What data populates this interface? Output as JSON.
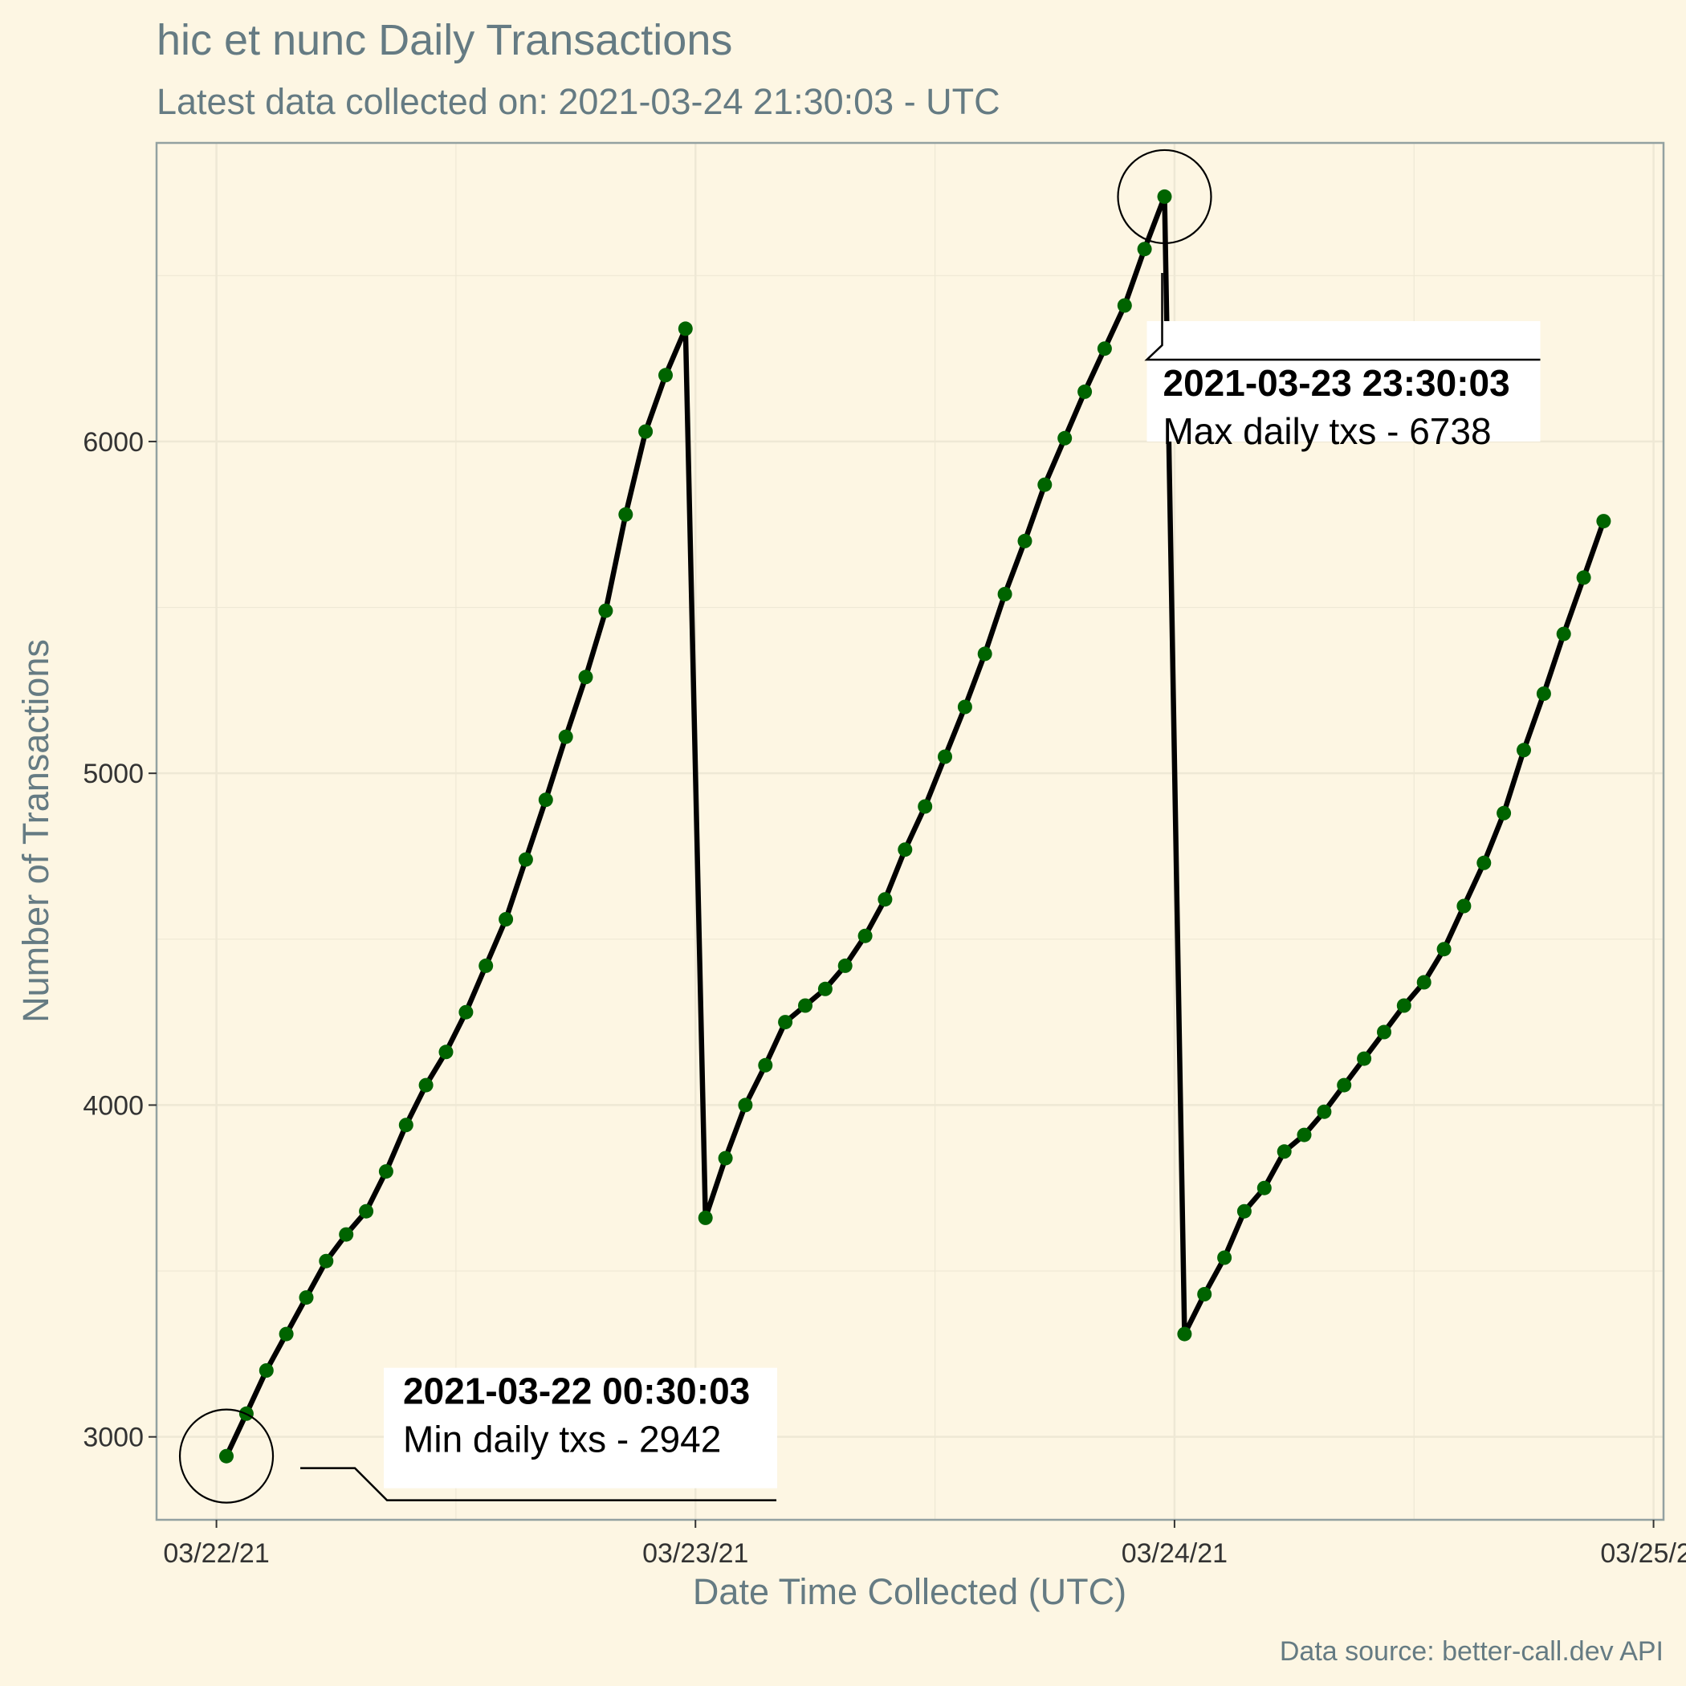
{
  "chart_data": {
    "type": "line",
    "title": "hic et nunc Daily Transactions",
    "subtitle": "Latest data collected on: 2021-03-24 21:30:03  - UTC",
    "xlabel": "Date Time Collected (UTC)",
    "ylabel": "Number of Transactions",
    "caption": "Data source: better-call.dev API",
    "x_start": "2021-03-22 00:30:03",
    "x_step_hours": 1,
    "xlim": [
      "2021-03-21 21:00",
      "2021-03-25 00:30"
    ],
    "ylim": [
      2750,
      6900
    ],
    "x_ticks": [
      "03/22/21",
      "03/23/21",
      "03/24/21",
      "03/25/21"
    ],
    "y_ticks": [
      3000,
      4000,
      5000,
      6000
    ],
    "grid": true,
    "line_color": "#000000",
    "point_color": "#006400",
    "series": [
      {
        "values": [
          2942,
          3070,
          3200,
          3310,
          3420,
          3530,
          3610,
          3680,
          3800,
          3940,
          4060,
          4160,
          4280,
          4420,
          4560,
          4740,
          4920,
          5110,
          5290,
          5490,
          5780,
          6030,
          6200,
          6340,
          3660,
          3840,
          4000,
          4120,
          4250,
          4300,
          4350,
          4420,
          4510,
          4620,
          4770,
          4900,
          5050,
          5200,
          5360,
          5540,
          5700,
          5870,
          6010,
          6150,
          6280,
          6410,
          6580,
          6738,
          3310,
          3430,
          3540,
          3680,
          3750,
          3860,
          3910,
          3980,
          4060,
          4140,
          4220,
          4300,
          4370,
          4470,
          4600,
          4730,
          4880,
          5070,
          5240,
          5420,
          5590,
          5760
        ]
      }
    ],
    "annotations": [
      {
        "point_index": 0,
        "bold": "2021-03-22 00:30:03",
        "text": "Min daily txs - 2942"
      },
      {
        "point_index": 47,
        "bold": "2021-03-23 23:30:03",
        "text": "Max daily txs - 6738"
      }
    ]
  },
  "colors": {
    "background": "#fdf6e3",
    "grid": "#eee8d5",
    "panel_border": "#93a1a1",
    "title_text": "#657b83"
  }
}
